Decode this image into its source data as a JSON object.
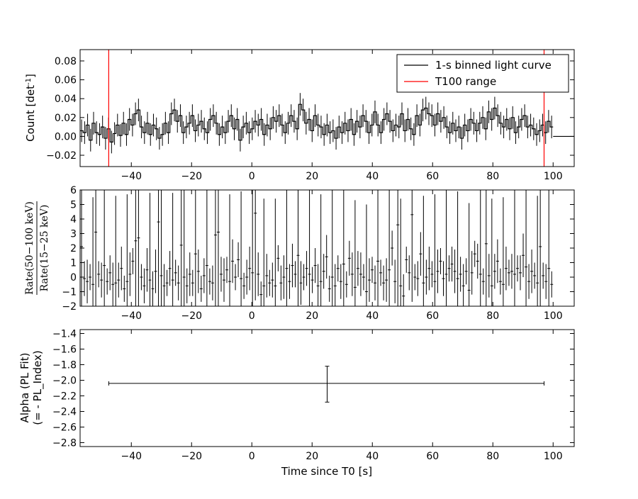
{
  "chart_data": [
    {
      "type": "line",
      "panel": "top",
      "ylabel_main": "Count [det",
      "ylabel_sup": "-1",
      "ylabel_close": "]",
      "xlim": [
        -57,
        107
      ],
      "ylim": [
        -0.032,
        0.092
      ],
      "xticks": [
        -40,
        -20,
        0,
        20,
        40,
        60,
        80,
        100
      ],
      "xtick_labels": [
        "−40",
        "−20",
        "0",
        "20",
        "40",
        "60",
        "80",
        "100"
      ],
      "yticks": [
        -0.02,
        0.0,
        0.02,
        0.04,
        0.06,
        0.08
      ],
      "ytick_labels": [
        "−0.02",
        "0.00",
        "0.02",
        "0.04",
        "0.06",
        "0.08"
      ],
      "legend": {
        "placement": "top-right",
        "entries": [
          {
            "label": "1-s binned light curve",
            "color": "#000000"
          },
          {
            "label": "T100 range",
            "color": "#ff0000"
          }
        ]
      },
      "t100_range": [
        -47.5,
        97.0
      ],
      "x_start": -57,
      "x_end_data": 100,
      "flat_after": {
        "x": [
          100,
          107
        ],
        "y": 0.0
      },
      "counts": [
        0.006,
        0.004,
        0.012,
        -0.004,
        0.014,
        0.004,
        0.002,
        0.01,
        -0.002,
        0.008,
        -0.006,
        0.003,
        0.012,
        0.001,
        0.014,
        0.002,
        0.018,
        0.012,
        0.024,
        0.028,
        0.01,
        0.004,
        0.014,
        0.002,
        0.012,
        0.008,
        -0.002,
        0.002,
        0.014,
        0.004,
        0.024,
        0.028,
        0.016,
        0.022,
        0.004,
        0.01,
        0.014,
        0.022,
        0.006,
        0.012,
        0.016,
        0.008,
        0.004,
        0.018,
        0.022,
        0.014,
        0.002,
        0.01,
        0.004,
        0.016,
        0.022,
        0.008,
        0.018,
        -0.004,
        0.01,
        0.014,
        0.004,
        0.008,
        0.016,
        0.012,
        0.018,
        0.002,
        0.012,
        0.008,
        0.02,
        0.016,
        0.022,
        0.012,
        0.004,
        0.014,
        0.022,
        0.016,
        0.008,
        0.034,
        0.028,
        0.014,
        0.018,
        0.006,
        0.022,
        0.012,
        0.01,
        0.002,
        0.012,
        0.004,
        0.006,
        -0.002,
        0.01,
        0.004,
        0.014,
        0.006,
        0.018,
        0.002,
        0.016,
        0.01,
        0.022,
        0.016,
        0.004,
        0.012,
        0.026,
        0.012,
        0.004,
        0.018,
        0.024,
        0.016,
        0.006,
        0.012,
        0.01,
        0.024,
        0.006,
        0.018,
        0.008,
        0.002,
        0.022,
        0.012,
        0.028,
        0.03,
        0.024,
        0.022,
        0.012,
        0.024,
        0.016,
        0.02,
        0.01,
        0.004,
        0.014,
        0.006,
        0.01,
        -0.002,
        0.012,
        0.006,
        0.018,
        0.014,
        0.006,
        0.014,
        0.02,
        0.008,
        0.026,
        0.018,
        0.03,
        0.022,
        0.014,
        0.01,
        0.018,
        0.008,
        0.02,
        0.004,
        0.01,
        0.018,
        0.022,
        0.01,
        0.012,
        0.008,
        0.002,
        0.006,
        0.012,
        0.004,
        0.016,
        0.01
      ],
      "count_errors": 0.012
    },
    {
      "type": "scatter",
      "panel": "middle",
      "ylabel_numerator": "Rate(50−100 keV)",
      "ylabel_denominator": "Rate(15−25 keV)",
      "xlim": [
        -57,
        107
      ],
      "ylim": [
        -2,
        6
      ],
      "xticks": [
        -40,
        -20,
        0,
        20,
        40,
        60,
        80,
        100
      ],
      "xtick_labels": [
        "−40",
        "−20",
        "0",
        "20",
        "40",
        "60",
        "80",
        "100"
      ],
      "yticks": [
        -2,
        -1,
        0,
        1,
        2,
        3,
        4,
        5,
        6
      ],
      "ytick_labels": [
        "−2",
        "−1",
        "0",
        "1",
        "2",
        "3",
        "4",
        "5",
        "6"
      ],
      "ratios": [
        2.1,
        -0.1,
        -0.3,
        0.0,
        -0.5,
        3.1,
        0.2,
        -0.2,
        0.8,
        -0.3,
        0.3,
        -0.5,
        -0.4,
        -0.2,
        0.6,
        -0.8,
        -0.3,
        0.2,
        1.1,
        2.5,
        2.7,
        0.0,
        -0.6,
        0.5,
        -0.2,
        -0.8,
        0.4,
        3.8,
        0.1,
        -0.6,
        -0.4,
        0.6,
        -0.2,
        0.3,
        -0.4,
        2.2,
        0.0,
        -0.6,
        0.2,
        -0.4,
        1.6,
        0.4,
        -0.8,
        0.1,
        0.8,
        -0.3,
        -0.4,
        2.9,
        3.1,
        0.2,
        -0.2,
        0.5,
        -0.3,
        1.1,
        0.0,
        1.2,
        -0.1,
        -0.6,
        0.0,
        0.6,
        0.3,
        4.4,
        0.2,
        -1.2,
        -0.6,
        0.1,
        -0.4,
        -0.2,
        -0.6,
        1.3,
        -0.4,
        0.0,
        0.6,
        -0.3,
        0.8,
        0.2,
        1.5,
        -0.4,
        0.0,
        0.6,
        0.2,
        -0.2,
        0.8,
        -0.6,
        -0.3,
        0.4,
        1.4,
        -0.8,
        0.0,
        -0.6,
        0.6,
        -0.3,
        0.9,
        -0.5,
        1.3,
        0.2,
        -0.7,
        0.6,
        0.2,
        0.0,
        -1.0,
        -0.2,
        0.5,
        -0.4,
        1.1,
        0.3,
        -0.4,
        -0.2,
        0.5,
        2.0,
        -0.3,
        3.6,
        -0.6,
        -1.3,
        1.2,
        0.3,
        4.3,
        0.0,
        -0.1,
        1.6,
        -0.4,
        0.0,
        0.6,
        0.2,
        -0.3,
        0.4,
        1.1,
        -0.1,
        0.2,
        0.6,
        0.9,
        0.4,
        -0.1,
        0.2,
        -0.6,
        0.4,
        -0.9,
        0.3,
        1.6,
        1.1,
        0.2,
        -0.3,
        2.3,
        0.1,
        -0.6,
        0.4,
        1.1,
        -0.3,
        -0.5,
        0.6,
        0.3,
        0.4,
        0.2,
        0.6,
        0.3,
        1.5,
        0.7,
        -0.3,
        0.4,
        0.1,
        -0.4,
        2.1,
        0.1,
        -0.3,
        0.6,
        -0.5
      ]
    },
    {
      "type": "scatter",
      "panel": "bottom",
      "ylabel_line1": "Alpha (PL Fit)",
      "ylabel_line2": "(= - PL_Index)",
      "xlabel": "Time since T0 [s]",
      "xlim": [
        -57,
        107
      ],
      "ylim": [
        -2.85,
        -1.35
      ],
      "xticks": [
        -40,
        -20,
        0,
        20,
        40,
        60,
        80,
        100
      ],
      "xtick_labels": [
        "−40",
        "−20",
        "0",
        "20",
        "40",
        "60",
        "80",
        "100"
      ],
      "yticks": [
        -2.8,
        -2.6,
        -2.4,
        -2.2,
        -2.0,
        -1.8,
        -1.6,
        -1.4
      ],
      "ytick_labels": [
        "−2.8",
        "−2.6",
        "−2.4",
        "−2.2",
        "−2.0",
        "−1.8",
        "−1.6",
        "−1.4"
      ],
      "points": [
        {
          "x": 25,
          "y": -2.04,
          "x_range": [
            -47.5,
            97.0
          ],
          "y_range": [
            -2.28,
            -1.82
          ]
        }
      ]
    }
  ]
}
